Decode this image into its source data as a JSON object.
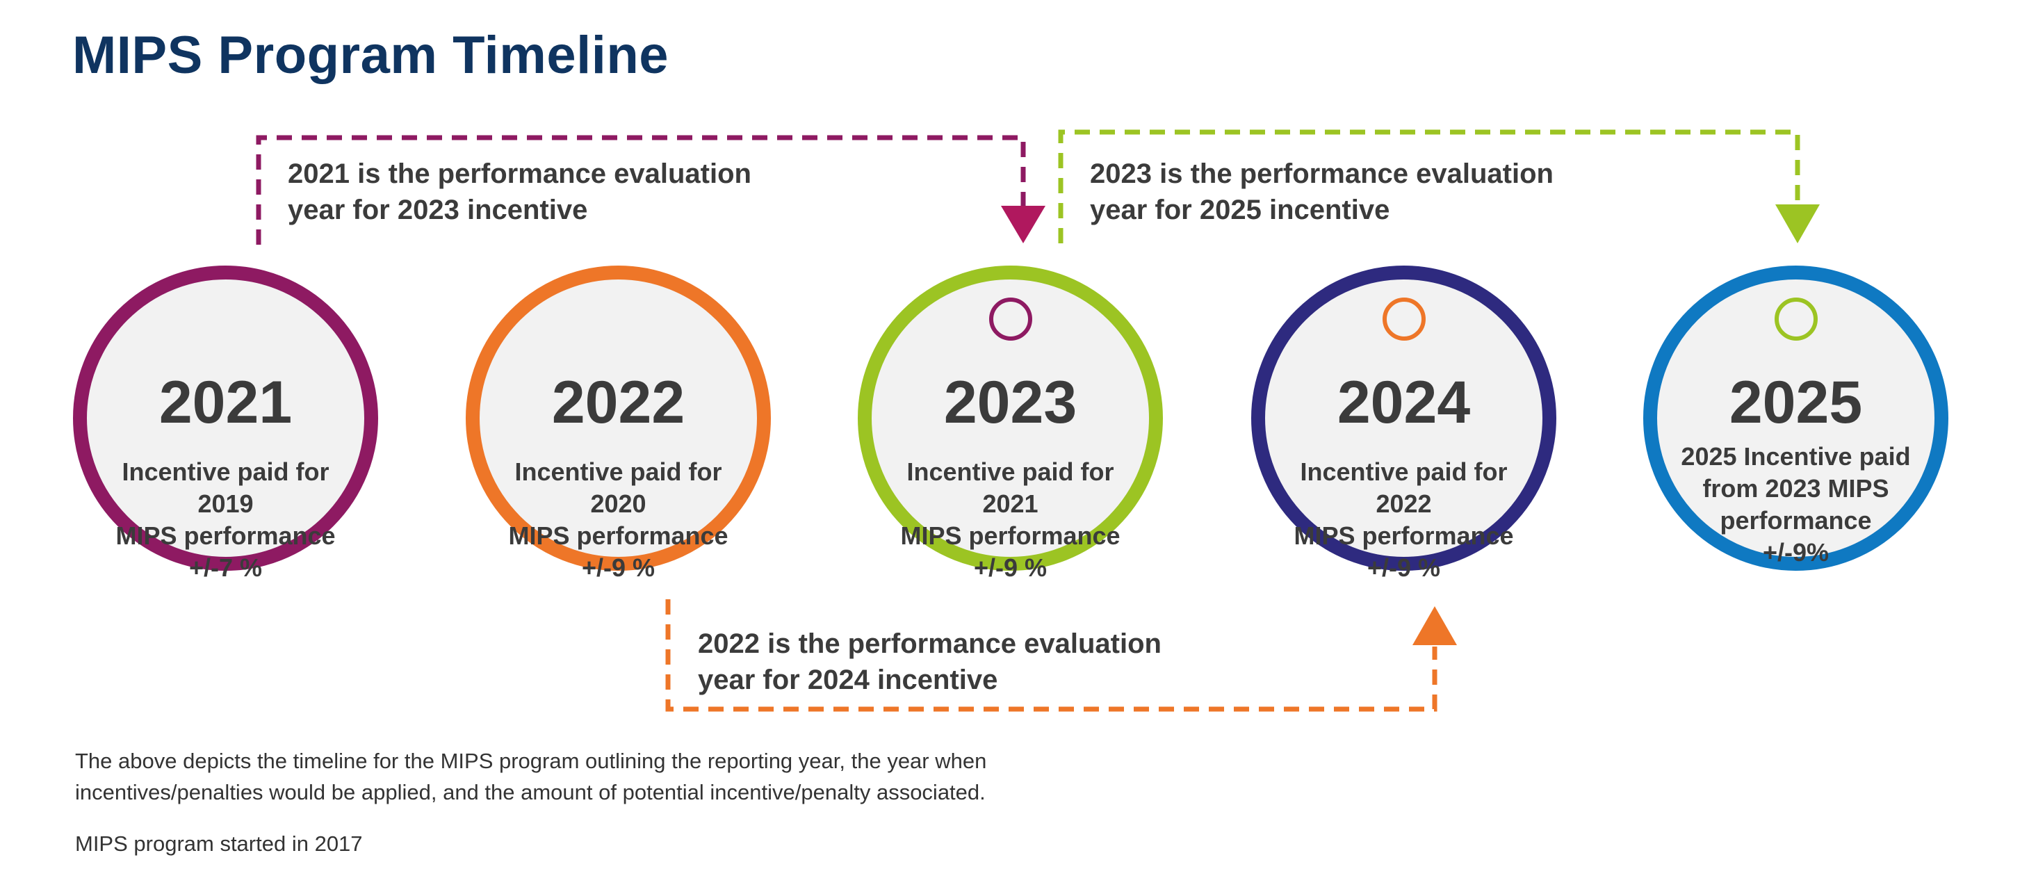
{
  "title": "MIPS Program Timeline",
  "colors": {
    "title": "#0f3460",
    "c2021": "#8e1a62",
    "c2022": "#ee7628",
    "c2023": "#9cc423",
    "c2024": "#2e2a7f",
    "c2025": "#0f79c2",
    "text": "#3b3b3b",
    "circle_fill": "#f2f2f2"
  },
  "years": [
    {
      "year": "2021",
      "lines": [
        "Incentive paid for 2019",
        "MIPS performance",
        "+/-7 %"
      ],
      "color": "#8e1a62"
    },
    {
      "year": "2022",
      "lines": [
        "Incentive paid for 2020",
        "MIPS performance",
        "+/-9 %"
      ],
      "color": "#ee7628"
    },
    {
      "year": "2023",
      "lines": [
        "Incentive paid for 2021",
        "MIPS performance",
        "+/-9 %"
      ],
      "color": "#9cc423",
      "ring_color": "#8e1a62"
    },
    {
      "year": "2024",
      "lines": [
        "Incentive paid for 2022",
        "MIPS performance",
        "+/-9 %"
      ],
      "color": "#2e2a7f",
      "ring_color": "#ee7628"
    },
    {
      "year": "2025",
      "lines": [
        "2025 Incentive paid",
        "from 2023 MIPS",
        "performance",
        "+/-9%"
      ],
      "color": "#0f79c2",
      "ring_color": "#9cc423"
    }
  ],
  "notes": {
    "n2021": [
      "2021 is the performance evaluation",
      "year for 2023 incentive"
    ],
    "n2023": [
      "2023 is the performance evaluation",
      "year for 2025 incentive"
    ],
    "n2022": [
      "2022 is the performance evaluation",
      "year for 2024 incentive"
    ]
  },
  "caption": [
    "The above depicts the timeline for the MIPS program outlining the reporting year, the year when",
    "incentives/penalties would be applied, and the amount of potential incentive/penalty associated."
  ],
  "started": "MIPS program started in 2017"
}
